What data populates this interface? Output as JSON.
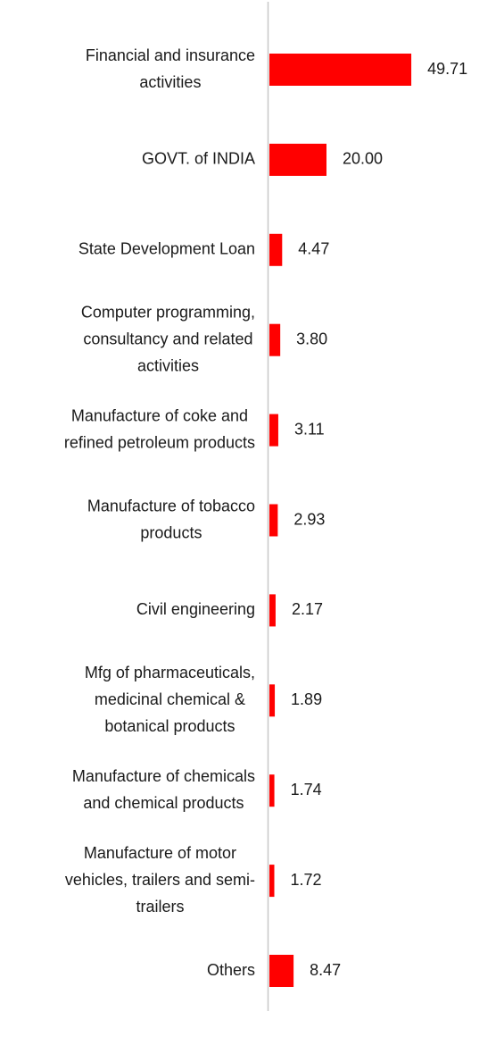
{
  "chart_data": {
    "type": "bar",
    "orientation": "horizontal",
    "categories": [
      [
        "Financial and insurance",
        "activities"
      ],
      [
        "GOVT. of INDIA"
      ],
      [
        "State Development Loan"
      ],
      [
        "Computer programming,",
        "consultancy and related",
        "activities"
      ],
      [
        "Manufacture of coke and",
        "refined petroleum products"
      ],
      [
        "Manufacture of tobacco",
        "products"
      ],
      [
        "Civil engineering"
      ],
      [
        "Mfg of pharmaceuticals,",
        "medicinal chemical &",
        "botanical products"
      ],
      [
        "Manufacture of chemicals",
        "and chemical products"
      ],
      [
        "Manufacture of motor",
        "vehicles, trailers and semi-",
        "trailers"
      ],
      [
        "Others"
      ]
    ],
    "values": [
      49.71,
      20.0,
      4.47,
      3.8,
      3.11,
      2.93,
      2.17,
      1.89,
      1.74,
      1.72,
      8.47
    ],
    "value_labels": [
      "49.71",
      "20.00",
      "4.47",
      "3.80",
      "3.11",
      "2.93",
      "2.17",
      "1.89",
      "1.74",
      "1.72",
      "8.47"
    ],
    "bar_color": "#ff0000",
    "axis_color": "#c8c8c8",
    "grid": false,
    "legend": "none"
  }
}
